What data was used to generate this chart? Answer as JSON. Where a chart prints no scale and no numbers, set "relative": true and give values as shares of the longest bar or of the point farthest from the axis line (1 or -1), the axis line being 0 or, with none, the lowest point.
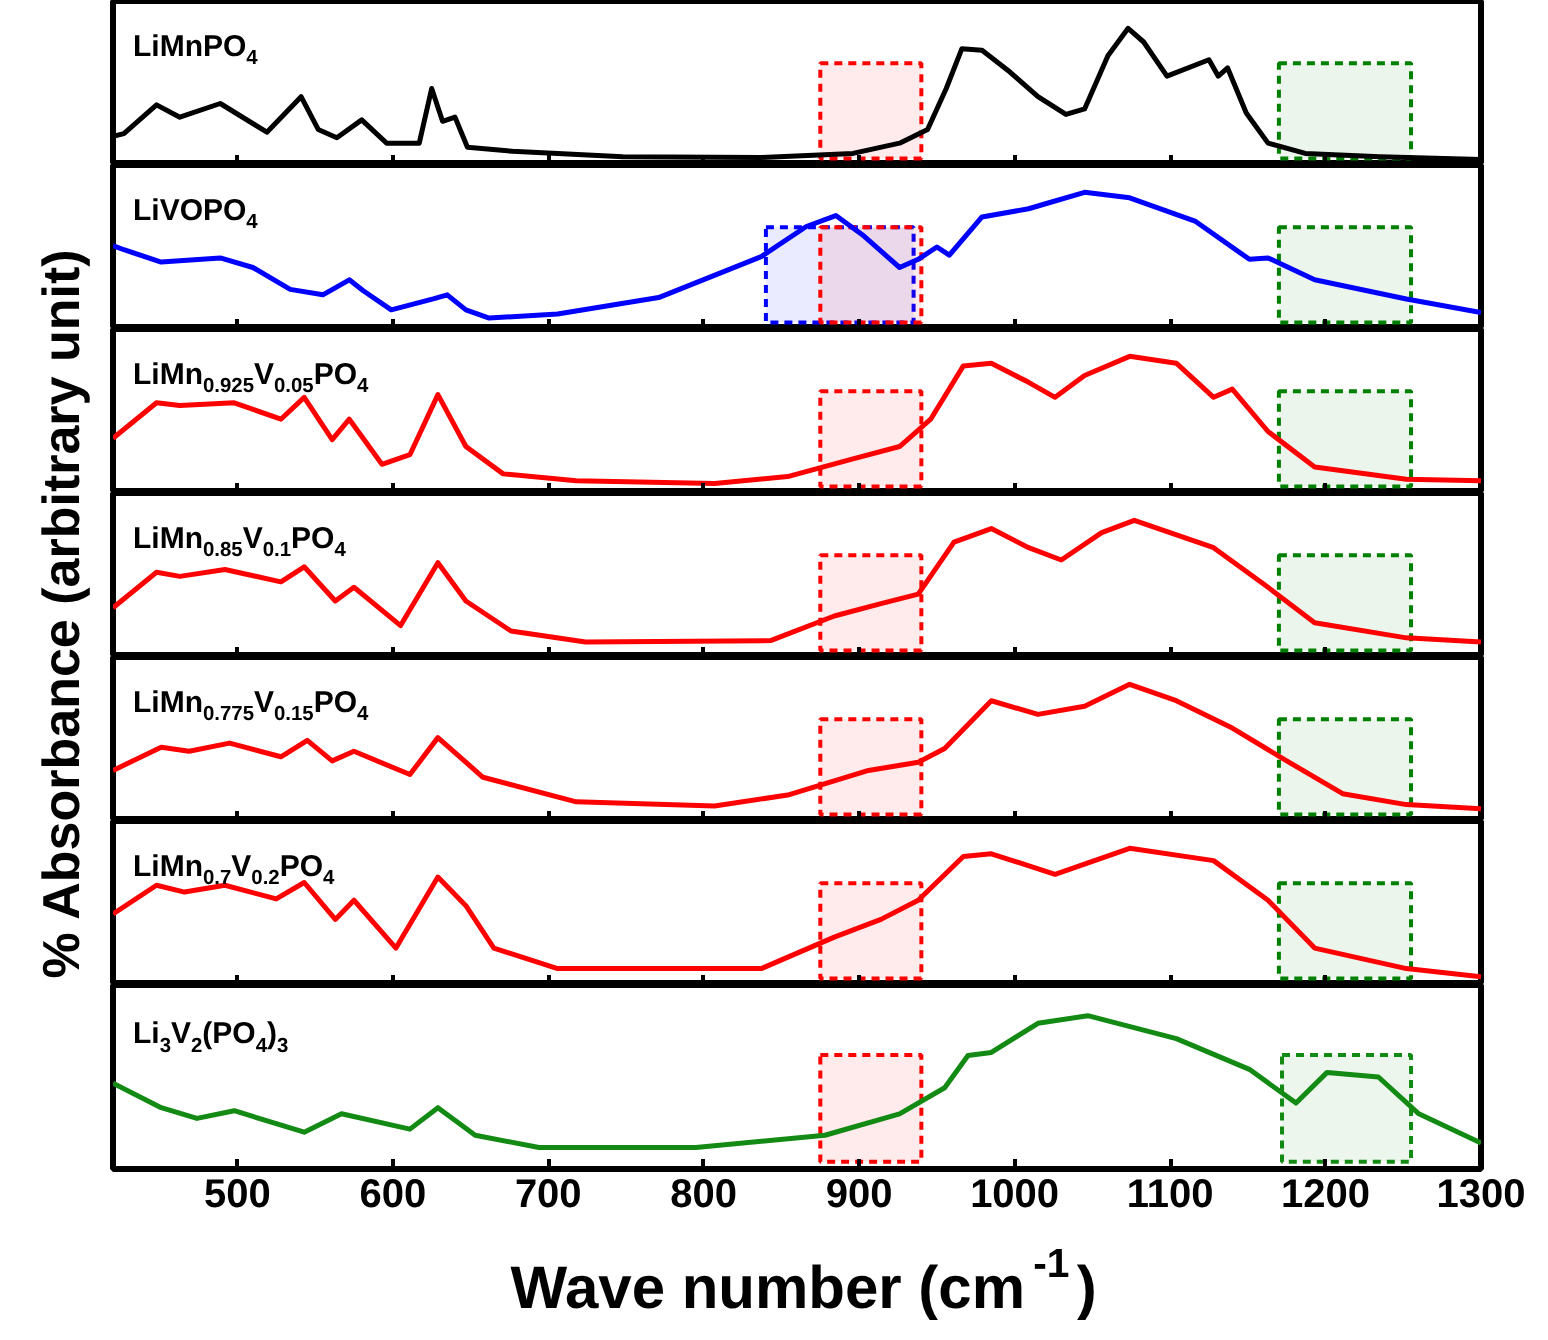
{
  "chart_data": [
    {
      "type": "line",
      "title": "LiMnPO$_{4}$",
      "relative": true,
      "color": "#000000",
      "xlim": [
        420,
        1300
      ],
      "tick_labels": false,
      "xticks": [
        {
          "value": 500,
          "label": null
        },
        {
          "value": 600,
          "label": null
        },
        {
          "value": 700,
          "label": null
        },
        {
          "value": 800,
          "label": null
        },
        {
          "value": 900,
          "label": null
        },
        {
          "value": 1000,
          "label": null
        },
        {
          "value": 1100,
          "label": null
        },
        {
          "value": 1200,
          "label": null
        }
      ],
      "x": [
        420,
        427,
        448,
        463,
        489,
        519,
        541,
        552,
        564,
        580,
        596,
        617,
        625,
        632,
        640,
        648,
        677,
        748,
        837,
        896,
        926,
        944,
        956,
        966,
        979,
        997,
        1015,
        1033,
        1045,
        1060,
        1073,
        1083,
        1098,
        1125,
        1131,
        1137,
        1149,
        1163,
        1187,
        1235,
        1300
      ],
      "values": [
        0.21,
        0.23,
        0.44,
        0.35,
        0.45,
        0.24,
        0.5,
        0.26,
        0.2,
        0.33,
        0.16,
        0.16,
        0.56,
        0.32,
        0.35,
        0.13,
        0.1,
        0.06,
        0.055,
        0.085,
        0.16,
        0.26,
        0.56,
        0.85,
        0.84,
        0.68,
        0.5,
        0.37,
        0.41,
        0.8,
        1.0,
        0.9,
        0.65,
        0.77,
        0.65,
        0.71,
        0.38,
        0.16,
        0.085,
        0.06,
        0.04
      ],
      "bands": [
        {
          "axis": "x",
          "from": 875,
          "to": 940,
          "color": "#ff0000"
        },
        {
          "axis": "x",
          "from": 1170,
          "to": 1255,
          "color": "#008000"
        }
      ]
    },
    {
      "type": "line",
      "title": "LiVOPO$_{4}$",
      "relative": true,
      "color": "#0000ff",
      "xlim": [
        420,
        1300
      ],
      "tick_labels": false,
      "xticks": [
        {
          "value": 500,
          "label": null
        },
        {
          "value": 600,
          "label": null
        },
        {
          "value": 700,
          "label": null
        },
        {
          "value": 800,
          "label": null
        },
        {
          "value": 900,
          "label": null
        },
        {
          "value": 1000,
          "label": null
        },
        {
          "value": 1100,
          "label": null
        },
        {
          "value": 1200,
          "label": null
        }
      ],
      "x": [
        420,
        427,
        451,
        489,
        510,
        534,
        555,
        572,
        581,
        599,
        626,
        635,
        647,
        662,
        706,
        771,
        837,
        866,
        885,
        902,
        926,
        938,
        950,
        958,
        979,
        1009,
        1021,
        1045,
        1074,
        1116,
        1151,
        1163,
        1193,
        1252,
        1300
      ],
      "values": [
        0.61,
        0.58,
        0.49,
        0.52,
        0.45,
        0.29,
        0.25,
        0.36,
        0.28,
        0.14,
        0.22,
        0.25,
        0.14,
        0.08,
        0.11,
        0.23,
        0.53,
        0.75,
        0.83,
        0.69,
        0.45,
        0.51,
        0.6,
        0.54,
        0.82,
        0.88,
        0.92,
        1.0,
        0.96,
        0.79,
        0.51,
        0.52,
        0.36,
        0.22,
        0.12
      ],
      "bands": [
        {
          "axis": "x",
          "from": 840,
          "to": 935,
          "color": "#0000ff"
        },
        {
          "axis": "x",
          "from": 875,
          "to": 940,
          "color": "#ff0000"
        },
        {
          "axis": "x",
          "from": 1170,
          "to": 1255,
          "color": "#008000"
        }
      ]
    },
    {
      "type": "line",
      "title": "LiMn$_{0.925}$V$_{0.05}$PO$_{4}$",
      "relative": true,
      "color": "#ff0000",
      "xlim": [
        420,
        1300
      ],
      "tick_labels": false,
      "xticks": [
        {
          "value": 500,
          "label": null
        },
        {
          "value": 600,
          "label": null
        },
        {
          "value": 700,
          "label": null
        },
        {
          "value": 800,
          "label": null
        },
        {
          "value": 900,
          "label": null
        },
        {
          "value": 1000,
          "label": null
        },
        {
          "value": 1100,
          "label": null
        },
        {
          "value": 1200,
          "label": null
        }
      ],
      "x": [
        420,
        448,
        463,
        498,
        528,
        543,
        561,
        572,
        593,
        611,
        629,
        647,
        671,
        718,
        807,
        854,
        896,
        926,
        946,
        967,
        985,
        1009,
        1026,
        1045,
        1074,
        1104,
        1128,
        1140,
        1163,
        1193,
        1252,
        1300
      ],
      "values": [
        0.4,
        0.66,
        0.64,
        0.66,
        0.54,
        0.7,
        0.39,
        0.54,
        0.21,
        0.28,
        0.72,
        0.34,
        0.14,
        0.09,
        0.07,
        0.12,
        0.25,
        0.34,
        0.54,
        0.93,
        0.95,
        0.81,
        0.7,
        0.86,
        1.0,
        0.95,
        0.7,
        0.76,
        0.45,
        0.19,
        0.1,
        0.09
      ],
      "bands": [
        {
          "axis": "x",
          "from": 875,
          "to": 940,
          "color": "#ff0000"
        },
        {
          "axis": "x",
          "from": 1170,
          "to": 1255,
          "color": "#008000"
        }
      ]
    },
    {
      "type": "line",
      "title": "LiMn$_{0.85}$V$_{0.1}$PO$_{4}$",
      "ylabel": "% Absorbance (arbitrary unit)",
      "relative": true,
      "color": "#ff0000",
      "xlim": [
        420,
        1300
      ],
      "tick_labels": false,
      "xticks": [
        {
          "value": 500,
          "label": null
        },
        {
          "value": 600,
          "label": null
        },
        {
          "value": 700,
          "label": null
        },
        {
          "value": 800,
          "label": null
        },
        {
          "value": 900,
          "label": null
        },
        {
          "value": 1000,
          "label": null
        },
        {
          "value": 1100,
          "label": null
        },
        {
          "value": 1200,
          "label": null
        }
      ],
      "x": [
        420,
        448,
        463,
        492,
        528,
        543,
        563,
        575,
        605,
        629,
        647,
        676,
        724,
        843,
        884,
        914,
        938,
        961,
        985,
        1009,
        1030,
        1056,
        1077,
        1128,
        1163,
        1193,
        1252,
        1300
      ],
      "values": [
        0.36,
        0.62,
        0.59,
        0.64,
        0.55,
        0.66,
        0.41,
        0.51,
        0.23,
        0.69,
        0.41,
        0.19,
        0.11,
        0.12,
        0.3,
        0.39,
        0.46,
        0.84,
        0.94,
        0.8,
        0.71,
        0.91,
        1.0,
        0.8,
        0.51,
        0.25,
        0.14,
        0.11
      ],
      "bands": [
        {
          "axis": "x",
          "from": 875,
          "to": 940,
          "color": "#ff0000"
        },
        {
          "axis": "x",
          "from": 1170,
          "to": 1255,
          "color": "#008000"
        }
      ]
    },
    {
      "type": "line",
      "title": "LiMn$_{0.775}$V$_{0.15}$PO$_{4}$",
      "relative": true,
      "color": "#ff0000",
      "xlim": [
        420,
        1300
      ],
      "tick_labels": false,
      "xticks": [
        {
          "value": 500,
          "label": null
        },
        {
          "value": 600,
          "label": null
        },
        {
          "value": 700,
          "label": null
        },
        {
          "value": 800,
          "label": null
        },
        {
          "value": 900,
          "label": null
        },
        {
          "value": 1000,
          "label": null
        },
        {
          "value": 1100,
          "label": null
        },
        {
          "value": 1200,
          "label": null
        }
      ],
      "x": [
        420,
        451,
        469,
        495,
        528,
        545,
        561,
        575,
        611,
        629,
        658,
        718,
        807,
        854,
        906,
        938,
        955,
        985,
        1015,
        1045,
        1074,
        1104,
        1140,
        1175,
        1211,
        1252,
        1300
      ],
      "values": [
        0.37,
        0.54,
        0.51,
        0.57,
        0.47,
        0.59,
        0.44,
        0.51,
        0.34,
        0.61,
        0.32,
        0.14,
        0.11,
        0.19,
        0.37,
        0.43,
        0.53,
        0.88,
        0.78,
        0.84,
        1.0,
        0.88,
        0.68,
        0.44,
        0.2,
        0.12,
        0.09
      ],
      "bands": [
        {
          "axis": "x",
          "from": 875,
          "to": 940,
          "color": "#ff0000"
        },
        {
          "axis": "x",
          "from": 1170,
          "to": 1255,
          "color": "#008000"
        }
      ]
    },
    {
      "type": "line",
      "title": "LiMn$_{0.7}$V$_{0.2}$PO$_{4}$",
      "relative": true,
      "color": "#ff0000",
      "xlim": [
        420,
        1300
      ],
      "tick_labels": false,
      "xticks": [
        {
          "value": 500,
          "label": null
        },
        {
          "value": 600,
          "label": null
        },
        {
          "value": 700,
          "label": null
        },
        {
          "value": 800,
          "label": null
        },
        {
          "value": 900,
          "label": null
        },
        {
          "value": 1000,
          "label": null
        },
        {
          "value": 1100,
          "label": null
        },
        {
          "value": 1200,
          "label": null
        }
      ],
      "x": [
        420,
        448,
        466,
        492,
        525,
        543,
        563,
        575,
        602,
        629,
        647,
        665,
        706,
        837,
        884,
        914,
        938,
        967,
        985,
        1026,
        1074,
        1128,
        1163,
        1193,
        1252,
        1300
      ],
      "values": [
        0.52,
        0.73,
        0.68,
        0.73,
        0.63,
        0.75,
        0.48,
        0.62,
        0.27,
        0.79,
        0.58,
        0.27,
        0.12,
        0.12,
        0.35,
        0.48,
        0.62,
        0.94,
        0.96,
        0.81,
        1.0,
        0.91,
        0.62,
        0.27,
        0.12,
        0.06
      ],
      "bands": [
        {
          "axis": "x",
          "from": 875,
          "to": 940,
          "color": "#ff0000"
        },
        {
          "axis": "x",
          "from": 1170,
          "to": 1255,
          "color": "#008000"
        }
      ]
    },
    {
      "type": "line",
      "title": "Li$_{3}$V$_{2}$(PO$_{4}$)$_{3}$",
      "xlabel": "Wave number (cm$^{-1}$)",
      "relative": true,
      "color": "#138a13",
      "xlim": [
        420,
        1300
      ],
      "tick_labels": "x",
      "xticks": [
        500,
        600,
        700,
        800,
        900,
        1000,
        1100,
        1200,
        1300
      ],
      "x": [
        420,
        451,
        474,
        498,
        543,
        567,
        611,
        629,
        653,
        694,
        795,
        878,
        926,
        955,
        970,
        985,
        1015,
        1047,
        1104,
        1151,
        1181,
        1201,
        1234,
        1260,
        1300
      ],
      "values": [
        0.56,
        0.4,
        0.33,
        0.38,
        0.24,
        0.36,
        0.26,
        0.4,
        0.22,
        0.14,
        0.14,
        0.22,
        0.36,
        0.53,
        0.74,
        0.76,
        0.95,
        1.0,
        0.85,
        0.65,
        0.43,
        0.63,
        0.6,
        0.36,
        0.17
      ],
      "bands": [
        {
          "axis": "x",
          "from": 875,
          "to": 940,
          "color": "#ff0000"
        },
        {
          "axis": "x",
          "from": 1172,
          "to": 1255,
          "color": "#138a13"
        }
      ]
    }
  ]
}
